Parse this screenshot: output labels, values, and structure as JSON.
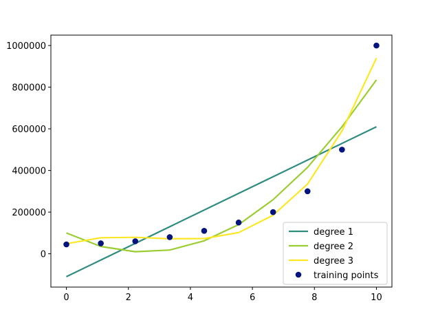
{
  "chart_data": {
    "type": "line",
    "x_ticks": [
      0,
      2,
      4,
      6,
      8,
      10
    ],
    "y_ticks": [
      0,
      200000,
      400000,
      600000,
      800000,
      1000000
    ],
    "xlim": [
      -0.5,
      10.5
    ],
    "ylim": [
      -160000,
      1050000
    ],
    "grid": false,
    "legend_position": "lower-right",
    "series": [
      {
        "name": "degree 1",
        "kind": "line",
        "color": "#2e8b7e",
        "x": [
          0,
          10
        ],
        "y": [
          -110000,
          610000
        ]
      },
      {
        "name": "degree 2",
        "kind": "line",
        "color": "#9acd32",
        "x": [
          0,
          1.111,
          2.222,
          3.333,
          4.444,
          5.556,
          6.667,
          7.778,
          8.889,
          10
        ],
        "y": [
          100000,
          35000,
          10000,
          18000,
          62000,
          140000,
          260000,
          415000,
          610000,
          835000
        ]
      },
      {
        "name": "degree 3",
        "kind": "line",
        "color": "#fde725",
        "x": [
          0,
          1.111,
          2.222,
          3.333,
          4.444,
          5.556,
          6.667,
          7.778,
          8.889,
          10
        ],
        "y": [
          48000,
          77000,
          79000,
          72000,
          73000,
          102000,
          185000,
          335000,
          590000,
          940000
        ]
      },
      {
        "name": "training points",
        "kind": "scatter",
        "color": "#00137f",
        "x": [
          0,
          1.111,
          2.222,
          3.333,
          4.444,
          5.556,
          6.667,
          7.778,
          8.889,
          10
        ],
        "y": [
          45000,
          50000,
          60000,
          80000,
          110000,
          150000,
          200000,
          300000,
          500000,
          1000000
        ]
      }
    ]
  }
}
